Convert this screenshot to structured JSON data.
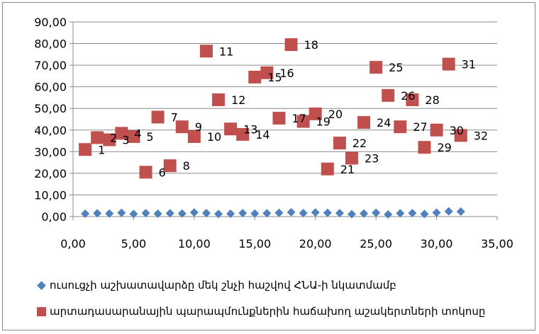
{
  "chart_data": {
    "type": "scatter",
    "title": "",
    "xlabel": "",
    "ylabel": "",
    "xlim": [
      0,
      35
    ],
    "ylim": [
      0,
      90
    ],
    "x_ticks": [
      "0,00",
      "5,00",
      "10,00",
      "15,00",
      "20,00",
      "25,00",
      "30,00",
      "35,00"
    ],
    "y_ticks": [
      "0,00",
      "10,00",
      "20,00",
      "30,00",
      "40,00",
      "50,00",
      "60,00",
      "70,00",
      "80,00",
      "90,00"
    ],
    "grid": "horizontal",
    "legend_position": "bottom",
    "colors": {
      "series1": "#4f81bd",
      "series2": "#c0504d",
      "grid": "#8c8c8c"
    },
    "series": [
      {
        "name": "ուսուցչի աշխատավարձը մեկ շնչի հաշվով ՀՆԱ-ի նկատմամբ",
        "marker": "diamond",
        "x": [
          1,
          2,
          3,
          4,
          5,
          6,
          7,
          8,
          9,
          10,
          11,
          12,
          13,
          14,
          15,
          16,
          17,
          18,
          19,
          20,
          21,
          22,
          23,
          24,
          25,
          26,
          27,
          28,
          29,
          30,
          31,
          32
        ],
        "y": [
          1.3,
          1.5,
          1.4,
          1.7,
          1.2,
          1.6,
          1.3,
          1.5,
          1.4,
          1.9,
          1.6,
          1.2,
          1.3,
          1.6,
          1.4,
          1.5,
          1.7,
          2.0,
          1.6,
          1.9,
          1.7,
          1.6,
          1.1,
          1.4,
          1.7,
          1.0,
          1.5,
          1.6,
          1.2,
          1.8,
          2.4,
          2.3
        ]
      },
      {
        "name": "արտադասարանային պարապմունքներին հաճախող աշակերտների տոկոսը",
        "marker": "square",
        "x": [
          1,
          2,
          3,
          4,
          5,
          6,
          7,
          8,
          9,
          10,
          11,
          12,
          13,
          14,
          15,
          16,
          17,
          18,
          19,
          20,
          21,
          22,
          23,
          24,
          25,
          26,
          27,
          28,
          29,
          30,
          31,
          32
        ],
        "y": [
          31.0,
          36.5,
          35.5,
          38.5,
          37.0,
          20.5,
          46.0,
          23.5,
          41.5,
          37.0,
          76.5,
          54.0,
          40.5,
          38.0,
          64.5,
          66.5,
          45.5,
          79.5,
          44.0,
          47.5,
          22.0,
          34.0,
          27.0,
          43.5,
          69.0,
          56.0,
          41.5,
          54.0,
          32.0,
          40.0,
          70.5,
          37.5
        ],
        "labels": [
          "1",
          "2",
          "3",
          "4",
          "5",
          "6",
          "7",
          "8",
          "9",
          "10",
          "11",
          "12",
          "13",
          "14",
          "15",
          "16",
          "17",
          "18",
          "19",
          "20",
          "21",
          "22",
          "23",
          "24",
          "25",
          "26",
          "27",
          "28",
          "29",
          "30",
          "31",
          "32"
        ]
      }
    ]
  }
}
